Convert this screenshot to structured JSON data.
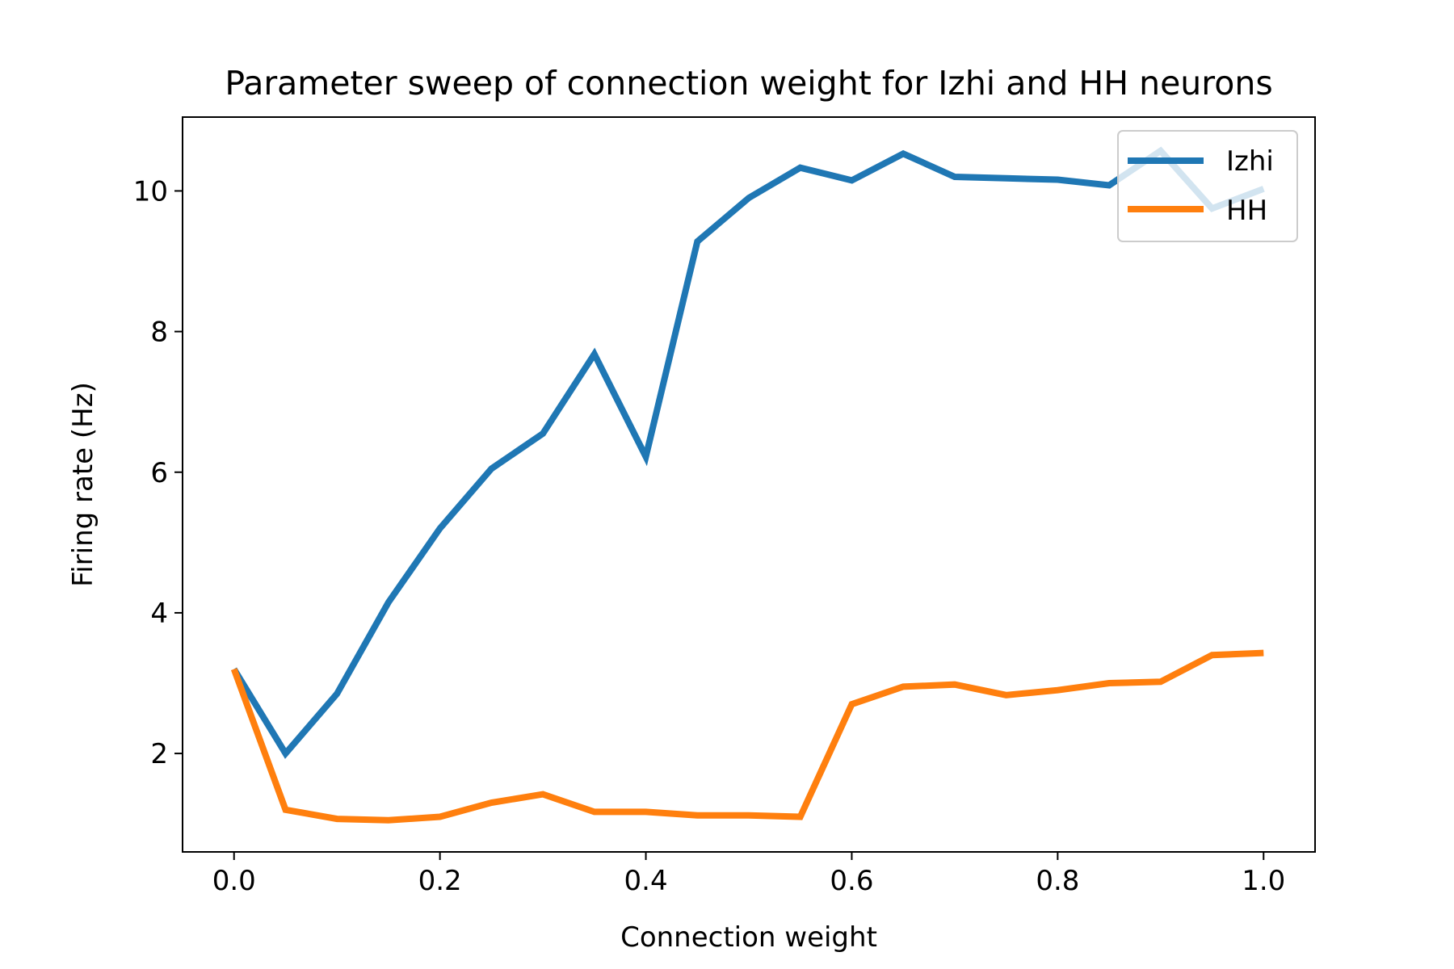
{
  "chart_data": {
    "type": "line",
    "title": "Parameter sweep of connection weight for Izhi and HH neurons",
    "xlabel": "Connection weight",
    "ylabel": "Firing rate (Hz)",
    "xlim": [
      -0.05,
      1.05
    ],
    "ylim": [
      0.6,
      11.05
    ],
    "xticks": [
      0.0,
      0.2,
      0.4,
      0.6,
      0.8,
      1.0
    ],
    "xtick_labels": [
      "0.0",
      "0.2",
      "0.4",
      "0.6",
      "0.8",
      "1.0"
    ],
    "yticks": [
      2,
      4,
      6,
      8,
      10
    ],
    "ytick_labels": [
      "2",
      "4",
      "6",
      "8",
      "10"
    ],
    "grid": false,
    "legend_position": "top-right",
    "x": [
      0.0,
      0.05,
      0.1,
      0.15,
      0.2,
      0.25,
      0.3,
      0.35,
      0.4,
      0.45,
      0.5,
      0.55,
      0.6,
      0.65,
      0.7,
      0.75,
      0.8,
      0.85,
      0.9,
      0.95,
      1.0
    ],
    "series": [
      {
        "name": "Izhi",
        "color": "#1f77b4",
        "values": [
          3.2,
          2.0,
          2.85,
          4.15,
          5.2,
          6.05,
          6.55,
          7.68,
          6.22,
          9.28,
          9.9,
          10.33,
          10.15,
          10.53,
          10.2,
          10.18,
          10.16,
          10.08,
          10.57,
          9.75,
          10.03
        ]
      },
      {
        "name": "HH",
        "color": "#ff7f0e",
        "values": [
          3.2,
          1.2,
          1.07,
          1.05,
          1.1,
          1.3,
          1.42,
          1.17,
          1.17,
          1.12,
          1.12,
          1.1,
          2.7,
          2.95,
          2.98,
          2.83,
          2.9,
          3.0,
          3.02,
          3.4,
          3.43
        ]
      }
    ]
  }
}
